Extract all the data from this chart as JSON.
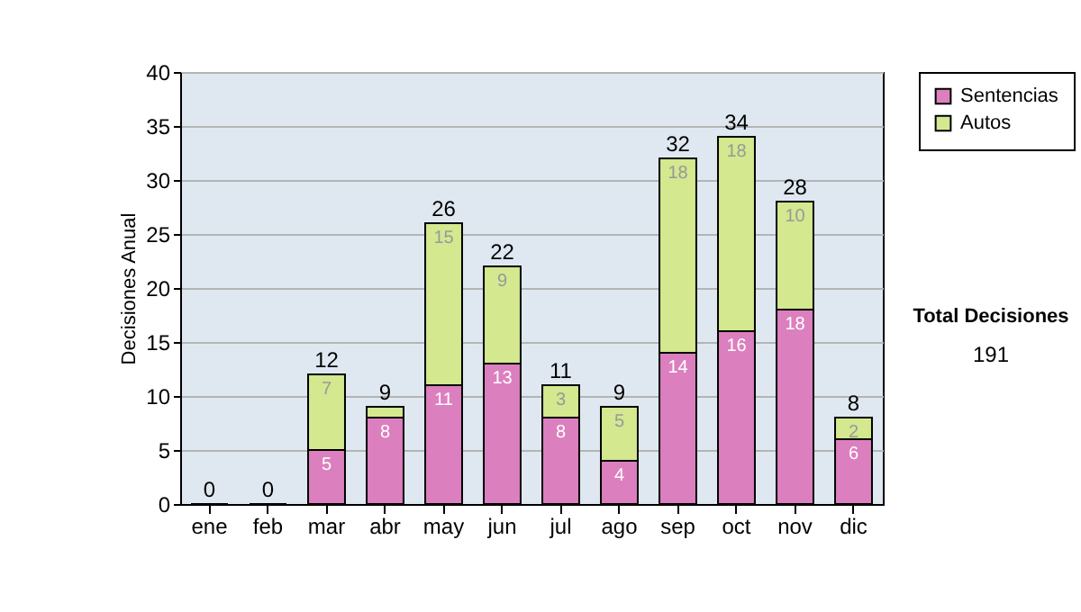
{
  "chart_data": {
    "type": "bar",
    "stacked": true,
    "ylabel": "Decisiones Anual",
    "categories": [
      "ene",
      "feb",
      "mar",
      "abr",
      "may",
      "jun",
      "jul",
      "ago",
      "sep",
      "oct",
      "nov",
      "dic"
    ],
    "series": [
      {
        "name": "Sentencias",
        "color": "#dc7fbf",
        "values": [
          0,
          0,
          5,
          8,
          11,
          13,
          8,
          4,
          14,
          16,
          18,
          6
        ],
        "value_labels": [
          null,
          null,
          "5",
          "8",
          "11",
          "13",
          "8",
          "4",
          "14",
          "16",
          "18",
          "6"
        ]
      },
      {
        "name": "Autos",
        "color": "#d3e88f",
        "values": [
          0,
          0,
          7,
          1,
          15,
          9,
          3,
          5,
          18,
          18,
          10,
          2
        ],
        "value_labels": [
          null,
          null,
          "7",
          null,
          "15",
          "9",
          "3",
          "5",
          "18",
          "18",
          "10",
          "2"
        ]
      }
    ],
    "totals": [
      "0",
      "0",
      "12",
      "9",
      "26",
      "22",
      "11",
      "9",
      "32",
      "34",
      "28",
      "8"
    ],
    "ylim": [
      0,
      40
    ],
    "yticks": [
      0,
      5,
      10,
      15,
      20,
      25,
      30,
      35,
      40
    ],
    "grid": "y",
    "legend": "right",
    "annotations": [
      "Total Decisiones",
      "191"
    ]
  }
}
